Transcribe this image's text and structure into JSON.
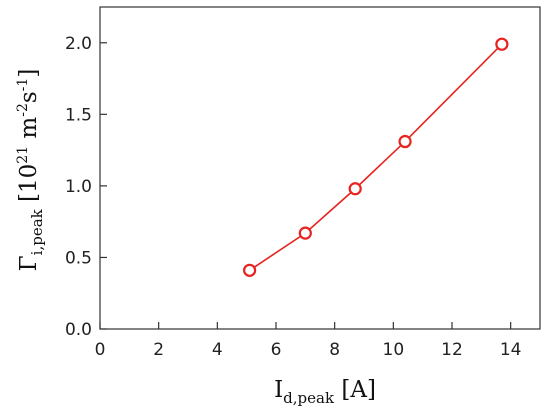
{
  "chart_data": {
    "type": "line",
    "title": "",
    "x": [
      5.1,
      7.0,
      8.7,
      10.4,
      13.7
    ],
    "series": [
      {
        "values": [
          0.41,
          0.67,
          0.98,
          1.31,
          1.99
        ],
        "color": "#e8231f",
        "marker": "open-circle"
      }
    ],
    "xlim": [
      0,
      15
    ],
    "ylim": [
      0,
      2.25
    ],
    "xticks": [
      0,
      2,
      4,
      6,
      8,
      10,
      12,
      14
    ],
    "xtick_labels": [
      "0",
      "2",
      "4",
      "6",
      "8",
      "10",
      "12",
      "14"
    ],
    "yticks": [
      0.0,
      0.5,
      1.0,
      1.5,
      2.0
    ],
    "ytick_labels": [
      "0.0",
      "0.5",
      "1.0",
      "1.5",
      "2.0"
    ],
    "xlabel": {
      "main": "I",
      "sub": "d,peak",
      "unit": " [A]"
    },
    "ylabel": {
      "main": "Γ",
      "sub": "i,peak",
      "unit_open": " [10",
      "exp1": "21",
      "unit_mid": " m",
      "exp2": "-2",
      "unit_s": "s",
      "exp3": "-1",
      "unit_close": "]"
    },
    "grid": false,
    "legend": "none"
  }
}
